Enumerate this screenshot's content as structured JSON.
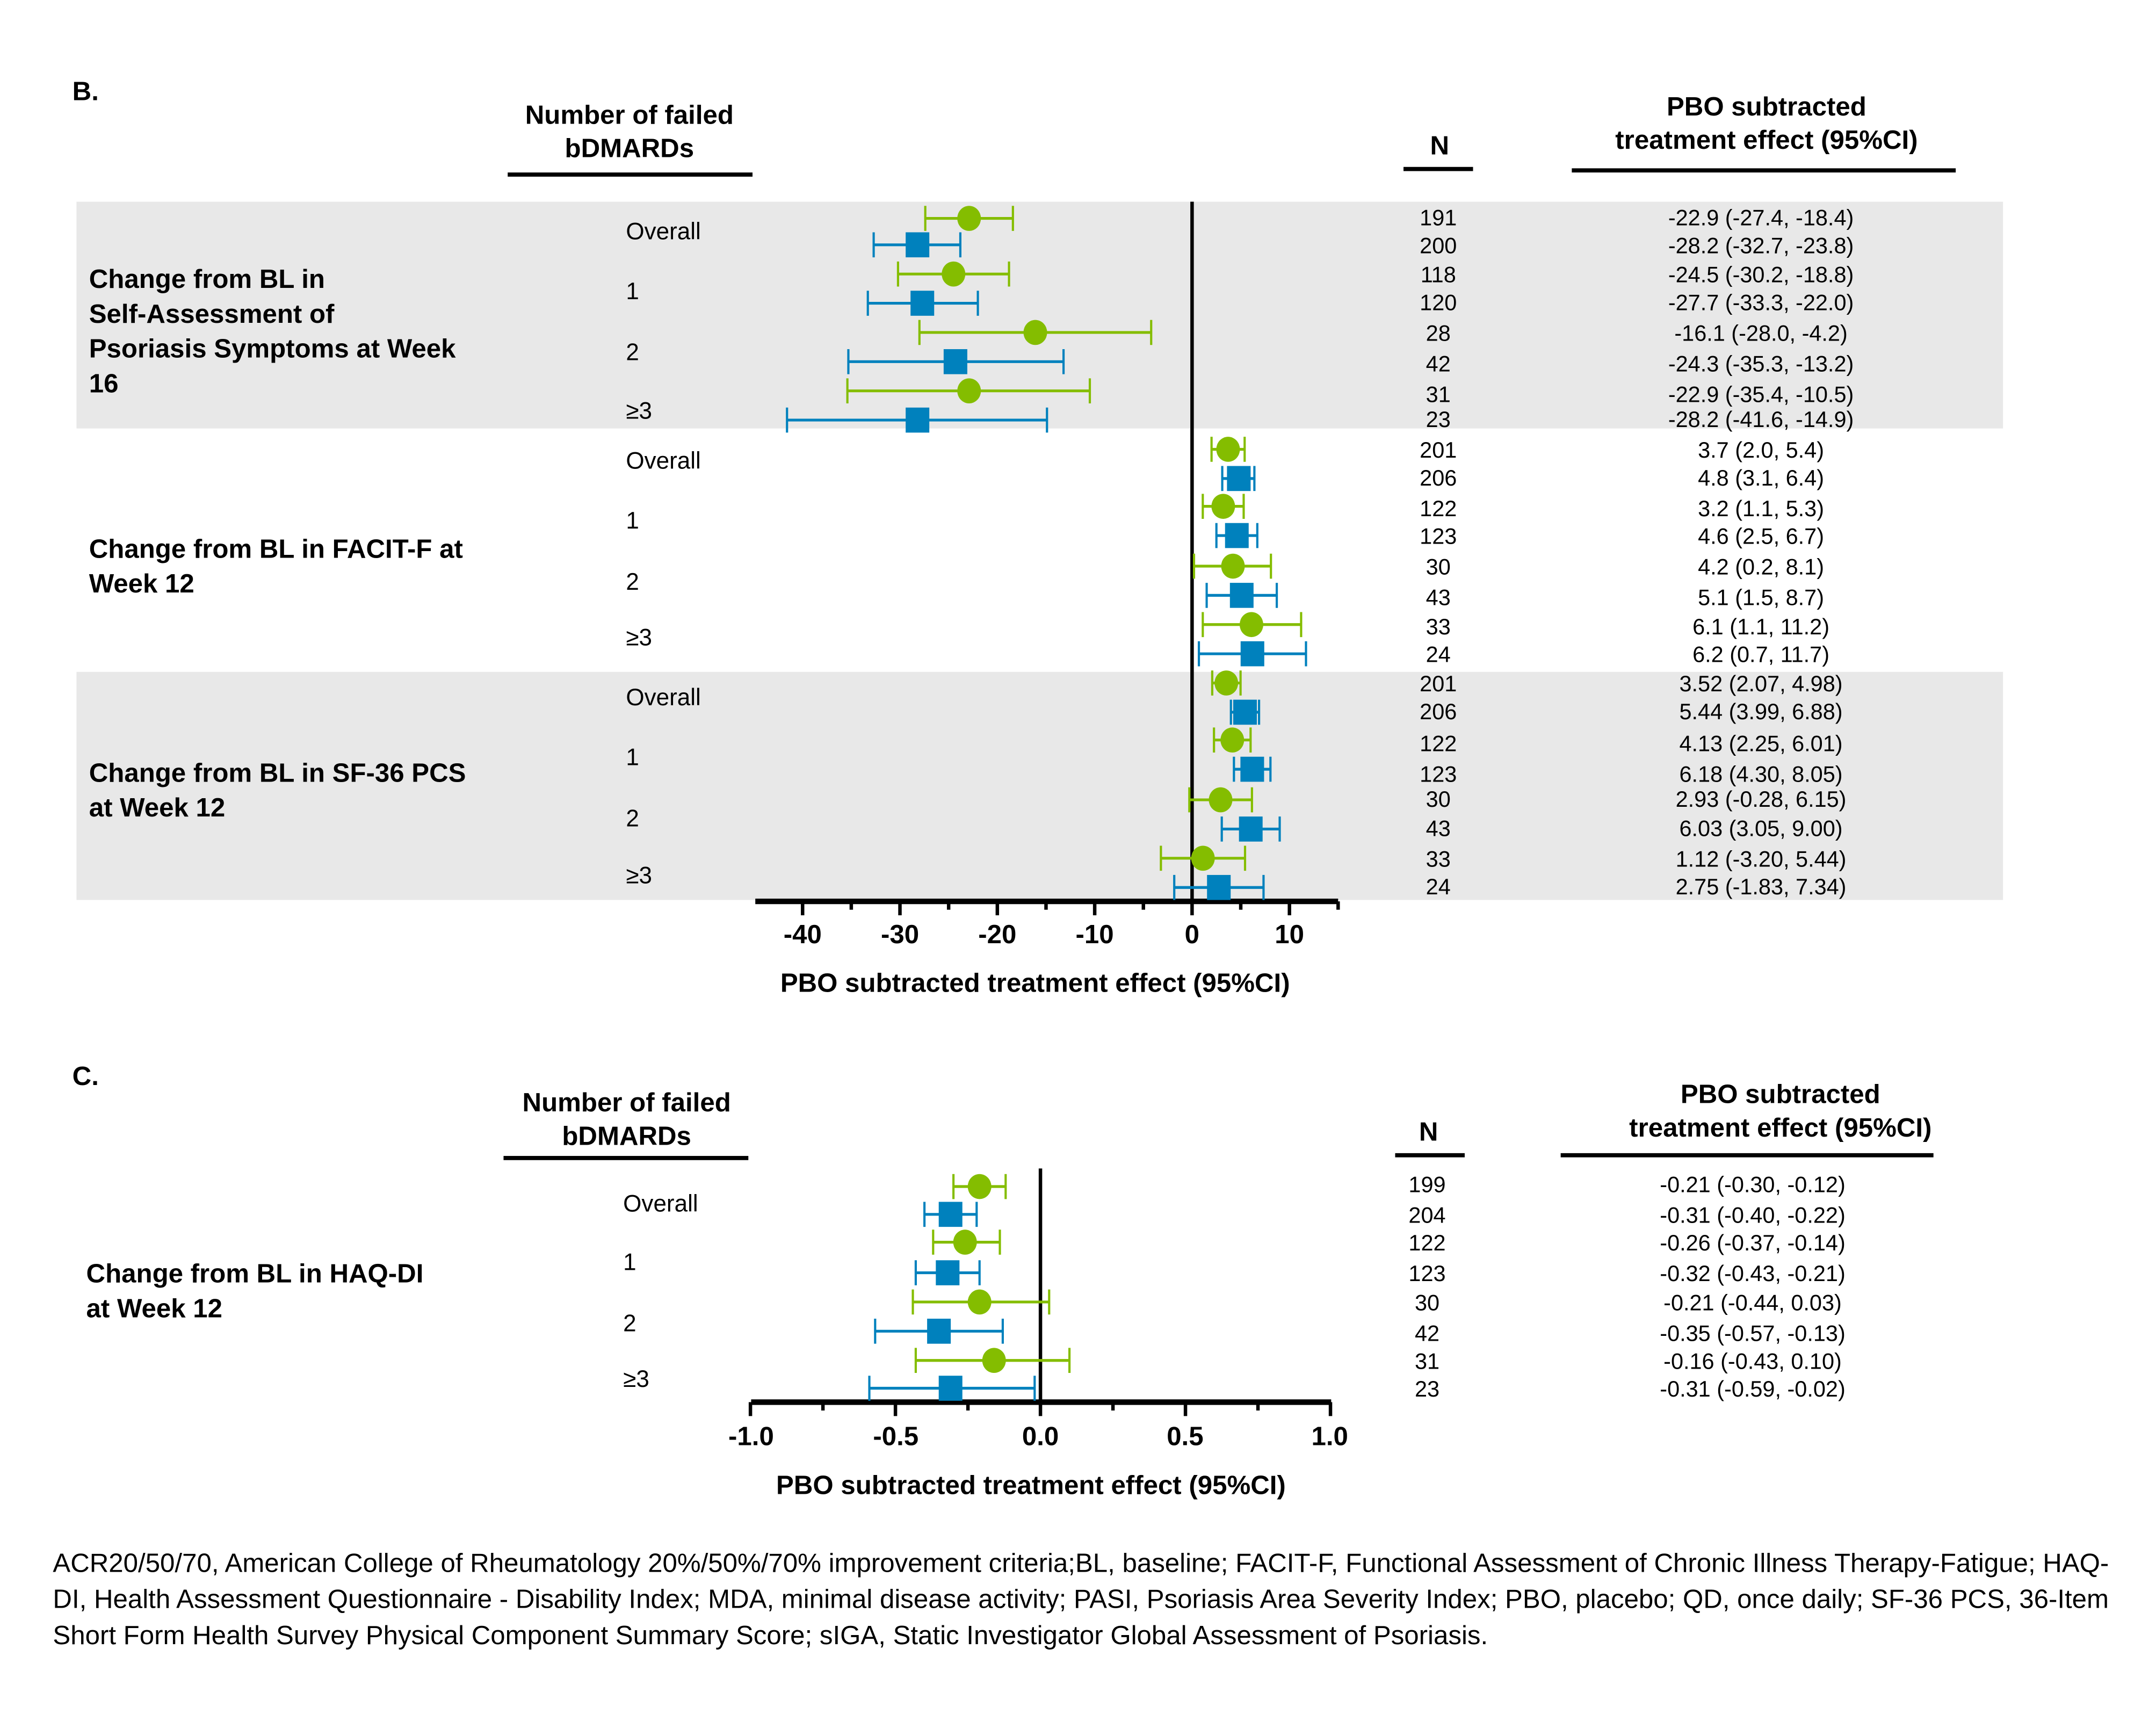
{
  "colors": {
    "green": "#84bd00",
    "blue": "#0081bd",
    "band": "#e8e8e8"
  },
  "panelB": {
    "letter": "B.",
    "header_subgroup": [
      "Number of failed",
      "bDMARDs"
    ],
    "header_n": "N",
    "header_effect": [
      "PBO subtracted",
      "treatment effect (95%CI)"
    ],
    "subgroups": [
      "Overall",
      "1",
      "2",
      "≥3"
    ],
    "outcomes": [
      {
        "label": [
          "Change from BL in",
          "Self-Assessment of",
          "Psoriasis Symptoms at Week",
          "16"
        ],
        "shaded": true
      },
      {
        "label": [
          "Change from BL in FACIT-F at",
          "Week 12"
        ],
        "shaded": false
      },
      {
        "label": [
          "Change from BL in SF-36 PCS",
          "at Week 12"
        ],
        "shaded": true
      }
    ],
    "xaxis_title": "PBO subtracted treatment effect (95%CI)",
    "ticks": [
      "-40",
      "-30",
      "-20",
      "-10",
      "0",
      "10"
    ]
  },
  "panelC": {
    "letter": "C.",
    "header_subgroup": [
      "Number of failed",
      "bDMARDs"
    ],
    "header_n": "N",
    "header_effect": [
      "PBO subtracted",
      "treatment effect (95%CI)"
    ],
    "subgroups": [
      "Overall",
      "1",
      "2",
      "≥3"
    ],
    "outcome": [
      "Change from BL in HAQ-DI",
      "at Week 12"
    ],
    "xaxis_title": "PBO subtracted treatment effect (95%CI)",
    "ticks": [
      "-1.0",
      "-0.5",
      "0.0",
      "0.5",
      "1.0"
    ]
  },
  "chart_data": [
    {
      "type": "forest",
      "title": "B.",
      "xlabel": "PBO subtracted treatment effect (95%CI)",
      "xlim": [
        -45,
        15
      ],
      "xticks": [
        -40,
        -30,
        -20,
        -10,
        0,
        10
      ],
      "reference_line": 0,
      "series_markers": {
        "green-circle": "#84bd00",
        "blue-square": "#0081bd"
      },
      "rows": [
        {
          "outcome": "Change from BL in Self-Assessment of Psoriasis Symptoms at Week 16",
          "subgroup": "Overall",
          "marker": "green-circle",
          "n": 191,
          "est": -22.9,
          "lo": -27.4,
          "hi": -18.4,
          "label": "-22.9 (-27.4, -18.4)"
        },
        {
          "outcome": "Change from BL in Self-Assessment of Psoriasis Symptoms at Week 16",
          "subgroup": "Overall",
          "marker": "blue-square",
          "n": 200,
          "est": -28.2,
          "lo": -32.7,
          "hi": -23.8,
          "label": "-28.2 (-32.7, -23.8)"
        },
        {
          "outcome": "Change from BL in Self-Assessment of Psoriasis Symptoms at Week 16",
          "subgroup": "1",
          "marker": "green-circle",
          "n": 118,
          "est": -24.5,
          "lo": -30.2,
          "hi": -18.8,
          "label": "-24.5 (-30.2, -18.8)"
        },
        {
          "outcome": "Change from BL in Self-Assessment of Psoriasis Symptoms at Week 16",
          "subgroup": "1",
          "marker": "blue-square",
          "n": 120,
          "est": -27.7,
          "lo": -33.3,
          "hi": -22.0,
          "label": "-27.7 (-33.3, -22.0)"
        },
        {
          "outcome": "Change from BL in Self-Assessment of Psoriasis Symptoms at Week 16",
          "subgroup": "2",
          "marker": "green-circle",
          "n": 28,
          "est": -16.1,
          "lo": -28.0,
          "hi": -4.2,
          "label": "-16.1 (-28.0, -4.2)"
        },
        {
          "outcome": "Change from BL in Self-Assessment of Psoriasis Symptoms at Week 16",
          "subgroup": "2",
          "marker": "blue-square",
          "n": 42,
          "est": -24.3,
          "lo": -35.3,
          "hi": -13.2,
          "label": "-24.3 (-35.3, -13.2)"
        },
        {
          "outcome": "Change from BL in Self-Assessment of Psoriasis Symptoms at Week 16",
          "subgroup": "≥3",
          "marker": "green-circle",
          "n": 31,
          "est": -22.9,
          "lo": -35.4,
          "hi": -10.5,
          "label": "-22.9 (-35.4, -10.5)"
        },
        {
          "outcome": "Change from BL in Self-Assessment of Psoriasis Symptoms at Week 16",
          "subgroup": "≥3",
          "marker": "blue-square",
          "n": 23,
          "est": -28.2,
          "lo": -41.6,
          "hi": -14.9,
          "label": "-28.2 (-41.6, -14.9)"
        },
        {
          "outcome": "Change from BL in FACIT-F at Week 12",
          "subgroup": "Overall",
          "marker": "green-circle",
          "n": 201,
          "est": 3.7,
          "lo": 2.0,
          "hi": 5.4,
          "label": "3.7 (2.0, 5.4)"
        },
        {
          "outcome": "Change from BL in FACIT-F at Week 12",
          "subgroup": "Overall",
          "marker": "blue-square",
          "n": 206,
          "est": 4.8,
          "lo": 3.1,
          "hi": 6.4,
          "label": "4.8 (3.1, 6.4)"
        },
        {
          "outcome": "Change from BL in FACIT-F at Week 12",
          "subgroup": "1",
          "marker": "green-circle",
          "n": 122,
          "est": 3.2,
          "lo": 1.1,
          "hi": 5.3,
          "label": "3.2 (1.1, 5.3)"
        },
        {
          "outcome": "Change from BL in FACIT-F at Week 12",
          "subgroup": "1",
          "marker": "blue-square",
          "n": 123,
          "est": 4.6,
          "lo": 2.5,
          "hi": 6.7,
          "label": "4.6 (2.5, 6.7)"
        },
        {
          "outcome": "Change from BL in FACIT-F at Week 12",
          "subgroup": "2",
          "marker": "green-circle",
          "n": 30,
          "est": 4.2,
          "lo": 0.2,
          "hi": 8.1,
          "label": "4.2 (0.2, 8.1)"
        },
        {
          "outcome": "Change from BL in FACIT-F at Week 12",
          "subgroup": "2",
          "marker": "blue-square",
          "n": 43,
          "est": 5.1,
          "lo": 1.5,
          "hi": 8.7,
          "label": "5.1 (1.5, 8.7)"
        },
        {
          "outcome": "Change from BL in FACIT-F at Week 12",
          "subgroup": "≥3",
          "marker": "green-circle",
          "n": 33,
          "est": 6.1,
          "lo": 1.1,
          "hi": 11.2,
          "label": "6.1 (1.1, 11.2)"
        },
        {
          "outcome": "Change from BL in FACIT-F at Week 12",
          "subgroup": "≥3",
          "marker": "blue-square",
          "n": 24,
          "est": 6.2,
          "lo": 0.7,
          "hi": 11.7,
          "label": "6.2 (0.7, 11.7)"
        },
        {
          "outcome": "Change from BL in SF-36 PCS at Week 12",
          "subgroup": "Overall",
          "marker": "green-circle",
          "n": 201,
          "est": 3.52,
          "lo": 2.07,
          "hi": 4.98,
          "label": "3.52 (2.07, 4.98)"
        },
        {
          "outcome": "Change from BL in SF-36 PCS at Week 12",
          "subgroup": "Overall",
          "marker": "blue-square",
          "n": 206,
          "est": 5.44,
          "lo": 3.99,
          "hi": 6.88,
          "label": "5.44 (3.99, 6.88)"
        },
        {
          "outcome": "Change from BL in SF-36 PCS at Week 12",
          "subgroup": "1",
          "marker": "green-circle",
          "n": 122,
          "est": 4.13,
          "lo": 2.25,
          "hi": 6.01,
          "label": "4.13 (2.25, 6.01)"
        },
        {
          "outcome": "Change from BL in SF-36 PCS at Week 12",
          "subgroup": "1",
          "marker": "blue-square",
          "n": 123,
          "est": 6.18,
          "lo": 4.3,
          "hi": 8.05,
          "label": "6.18 (4.30, 8.05)"
        },
        {
          "outcome": "Change from BL in SF-36 PCS at Week 12",
          "subgroup": "2",
          "marker": "green-circle",
          "n": 30,
          "est": 2.93,
          "lo": -0.28,
          "hi": 6.15,
          "label": "2.93 (-0.28, 6.15)"
        },
        {
          "outcome": "Change from BL in SF-36 PCS at Week 12",
          "subgroup": "2",
          "marker": "blue-square",
          "n": 43,
          "est": 6.03,
          "lo": 3.05,
          "hi": 9.0,
          "label": "6.03 (3.05, 9.00)"
        },
        {
          "outcome": "Change from BL in SF-36 PCS at Week 12",
          "subgroup": "≥3",
          "marker": "green-circle",
          "n": 33,
          "est": 1.12,
          "lo": -3.2,
          "hi": 5.44,
          "label": "1.12 (-3.20, 5.44)"
        },
        {
          "outcome": "Change from BL in SF-36 PCS at Week 12",
          "subgroup": "≥3",
          "marker": "blue-square",
          "n": 24,
          "est": 2.75,
          "lo": -1.83,
          "hi": 7.34,
          "label": "2.75 (-1.83, 7.34)"
        }
      ]
    },
    {
      "type": "forest",
      "title": "C.",
      "xlabel": "PBO subtracted treatment effect (95%CI)",
      "xlim": [
        -1.0,
        1.0
      ],
      "xticks": [
        -1.0,
        -0.5,
        0.0,
        0.5,
        1.0
      ],
      "reference_line": 0,
      "rows": [
        {
          "outcome": "Change from BL in HAQ-DI at Week 12",
          "subgroup": "Overall",
          "marker": "green-circle",
          "n": 199,
          "est": -0.21,
          "lo": -0.3,
          "hi": -0.12,
          "label": "-0.21 (-0.30, -0.12)"
        },
        {
          "outcome": "Change from BL in HAQ-DI at Week 12",
          "subgroup": "Overall",
          "marker": "blue-square",
          "n": 204,
          "est": -0.31,
          "lo": -0.4,
          "hi": -0.22,
          "label": "-0.31 (-0.40, -0.22)"
        },
        {
          "outcome": "Change from BL in HAQ-DI at Week 12",
          "subgroup": "1",
          "marker": "green-circle",
          "n": 122,
          "est": -0.26,
          "lo": -0.37,
          "hi": -0.14,
          "label": "-0.26 (-0.37, -0.14)"
        },
        {
          "outcome": "Change from BL in HAQ-DI at Week 12",
          "subgroup": "1",
          "marker": "blue-square",
          "n": 123,
          "est": -0.32,
          "lo": -0.43,
          "hi": -0.21,
          "label": "-0.32 (-0.43, -0.21)"
        },
        {
          "outcome": "Change from BL in HAQ-DI at Week 12",
          "subgroup": "2",
          "marker": "green-circle",
          "n": 30,
          "est": -0.21,
          "lo": -0.44,
          "hi": 0.03,
          "label": "-0.21 (-0.44, 0.03)"
        },
        {
          "outcome": "Change from BL in HAQ-DI at Week 12",
          "subgroup": "2",
          "marker": "blue-square",
          "n": 42,
          "est": -0.35,
          "lo": -0.57,
          "hi": -0.13,
          "label": "-0.35 (-0.57, -0.13)"
        },
        {
          "outcome": "Change from BL in HAQ-DI at Week 12",
          "subgroup": "≥3",
          "marker": "green-circle",
          "n": 31,
          "est": -0.16,
          "lo": -0.43,
          "hi": 0.1,
          "label": "-0.16 (-0.43, 0.10)"
        },
        {
          "outcome": "Change from BL in HAQ-DI at Week 12",
          "subgroup": "≥3",
          "marker": "blue-square",
          "n": 23,
          "est": -0.31,
          "lo": -0.59,
          "hi": -0.02,
          "label": "-0.31 (-0.59, -0.02)"
        }
      ]
    }
  ],
  "footnote": "ACR20/50/70, American College of Rheumatology 20%/50%/70% improvement criteria;BL, baseline;  FACIT-F, Functional Assessment of Chronic Illness Therapy-Fatigue; HAQ-DI, Health Assessment Questionnaire - Disability Index; MDA, minimal disease activity; PASI, Psoriasis Area Severity Index; PBO, placebo; QD, once daily; SF-36 PCS, 36-Item Short Form Health Survey Physical Component Summary Score; sIGA, Static Investigator Global Assessment of Psoriasis."
}
